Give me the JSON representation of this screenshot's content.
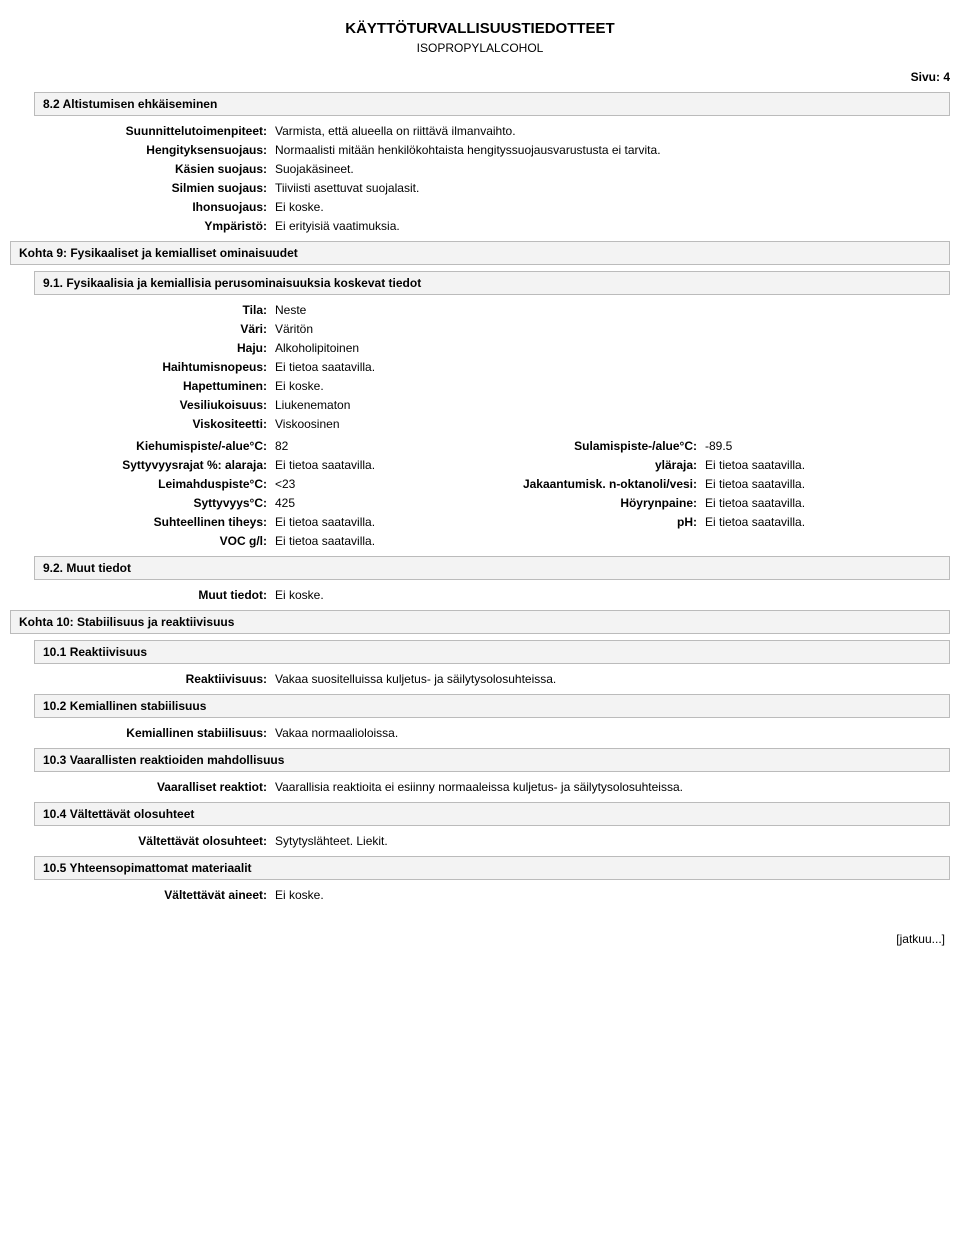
{
  "header": {
    "title": "KÄYTTÖTURVALLISUUSTIEDOTTEET",
    "subtitle": "ISOPROPYLALCOHOL",
    "page_label": "Sivu:",
    "page_number": "4"
  },
  "section_8_2": {
    "title": "8.2 Altistumisen ehkäiseminen",
    "rows": [
      {
        "label": "Suunnittelutoimenpiteet:",
        "value": "Varmista, että alueella on riittävä ilmanvaihto."
      },
      {
        "label": "Hengityksensuojaus:",
        "value": "Normaalisti mitään henkilökohtaista hengityssuojausvarustusta ei tarvita."
      },
      {
        "label": "Käsien suojaus:",
        "value": "Suojakäsineet."
      },
      {
        "label": "Silmien suojaus:",
        "value": "Tiiviisti asettuvat suojalasit."
      },
      {
        "label": "Ihonsuojaus:",
        "value": "Ei koske."
      },
      {
        "label": "Ympäristö:",
        "value": "Ei erityisiä vaatimuksia."
      }
    ]
  },
  "kohta9": {
    "title": "Kohta 9: Fysikaaliset ja kemialliset ominaisuudet"
  },
  "section_9_1": {
    "title": "9.1. Fysikaalisia ja kemiallisia perusominaisuuksia koskevat tiedot",
    "upper_rows": [
      {
        "label": "Tila:",
        "value": "Neste"
      },
      {
        "label": "Väri:",
        "value": "Väritön"
      },
      {
        "label": "Haju:",
        "value": "Alkoholipitoinen"
      },
      {
        "label": "Haihtumisnopeus:",
        "value": "Ei tietoa saatavilla."
      },
      {
        "label": "Hapettuminen:",
        "value": "Ei koske."
      },
      {
        "label": "Vesiliukoisuus:",
        "value": "Liukenematon"
      },
      {
        "label": "Viskositeetti:",
        "value": "Viskoosinen"
      }
    ],
    "two_col_rows": [
      {
        "l1": "Kiehumispiste/-alue°C:",
        "v1": "82",
        "l2": "Sulamispiste-/alue°C:",
        "v2": "-89.5"
      },
      {
        "l1": "Syttyvyysrajat %: alaraja:",
        "v1": "Ei tietoa saatavilla.",
        "l2": "yläraja:",
        "v2": "Ei tietoa saatavilla."
      },
      {
        "l1": "Leimahduspiste°C:",
        "v1": "<23",
        "l2": "Jakaantumisk. n-oktanoli/vesi:",
        "v2": "Ei tietoa saatavilla."
      },
      {
        "l1": "Syttyvyys°C:",
        "v1": "425",
        "l2": "Höyrynpaine:",
        "v2": "Ei tietoa saatavilla."
      },
      {
        "l1": "Suhteellinen tiheys:",
        "v1": "Ei tietoa saatavilla.",
        "l2": "pH:",
        "v2": "Ei tietoa saatavilla."
      },
      {
        "l1": "VOC g/l:",
        "v1": "Ei tietoa saatavilla.",
        "l2": "",
        "v2": ""
      }
    ]
  },
  "section_9_2": {
    "title": "9.2. Muut tiedot",
    "rows": [
      {
        "label": "Muut tiedot:",
        "value": "Ei koske."
      }
    ]
  },
  "kohta10": {
    "title": "Kohta 10: Stabiilisuus ja reaktiivisuus"
  },
  "section_10_1": {
    "title": "10.1 Reaktiivisuus",
    "rows": [
      {
        "label": "Reaktiivisuus:",
        "value": "Vakaa suositelluissa kuljetus- ja säilytysolosuhteissa."
      }
    ]
  },
  "section_10_2": {
    "title": "10.2 Kemiallinen stabiilisuus",
    "rows": [
      {
        "label": "Kemiallinen stabiilisuus:",
        "value": "Vakaa normaalioloissa."
      }
    ]
  },
  "section_10_3": {
    "title": "10.3 Vaarallisten reaktioiden mahdollisuus",
    "rows": [
      {
        "label": "Vaaralliset reaktiot:",
        "value": "Vaarallisia reaktioita ei esiinny normaaleissa kuljetus- ja säilytysolosuhteissa."
      }
    ]
  },
  "section_10_4": {
    "title": "10.4 Vältettävät olosuhteet",
    "rows": [
      {
        "label": "Vältettävät olosuhteet:",
        "value": "Sytytyslähteet. Liekit."
      }
    ]
  },
  "section_10_5": {
    "title": "10.5 Yhteensopimattomat materiaalit",
    "rows": [
      {
        "label": "Vältettävät aineet:",
        "value": "Ei koske."
      }
    ]
  },
  "footer": {
    "text": "[jatkuu...]"
  }
}
